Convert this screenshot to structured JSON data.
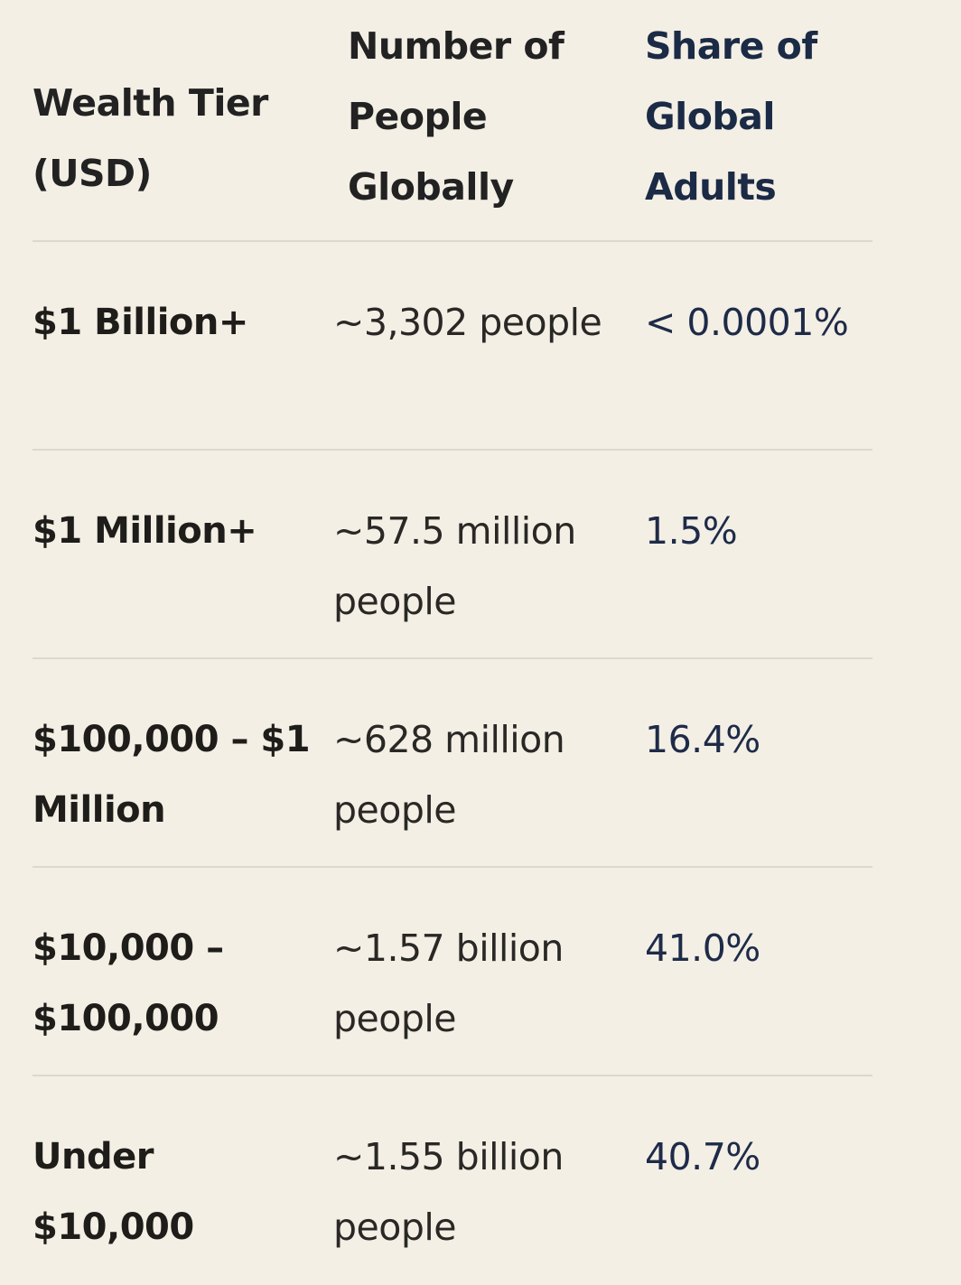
{
  "table": {
    "headers": [
      "Wealth Tier (USD)",
      "Number of People Globally",
      "Share of Global Adults"
    ],
    "rows": [
      {
        "tier": "$1 Billion+",
        "people": "~3,302 people",
        "share": "< 0.0001%"
      },
      {
        "tier": "$1 Million+",
        "people": "~57.5 million people",
        "share": "1.5%"
      },
      {
        "tier": "$100,000 – $1 Million",
        "people": "~628 million people",
        "share": "16.4%"
      },
      {
        "tier": "$10,000 – $100,000",
        "people": "~1.57 billion people",
        "share": "41.0%"
      },
      {
        "tier": "Under $10,000",
        "people": "~1.55 billion people",
        "share": "40.7%"
      }
    ]
  }
}
